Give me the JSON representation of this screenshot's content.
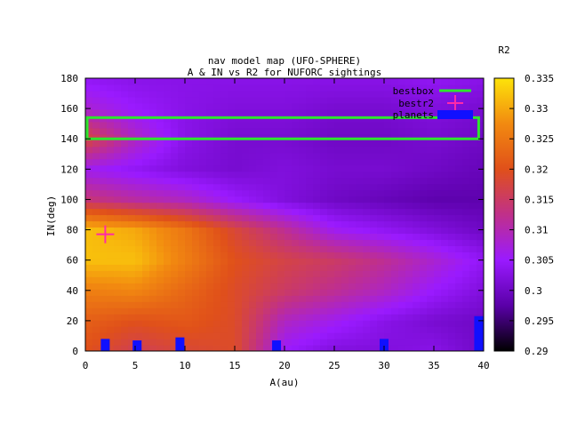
{
  "chart_data": {
    "type": "heatmap",
    "title_line1": "nav model map (UFO-SPHERE)",
    "title_line2": "A & IN vs R2 for NUFORC sightings",
    "xlabel": "A(au)",
    "ylabel": "IN(deg)",
    "colorbar_label": "R2",
    "xlim": [
      0,
      40
    ],
    "ylim": [
      0,
      180
    ],
    "x_ticks": [
      "0",
      "5",
      "10",
      "15",
      "20",
      "25",
      "30",
      "35",
      "40"
    ],
    "y_ticks": [
      "0",
      "20",
      "40",
      "60",
      "80",
      "100",
      "120",
      "140",
      "160",
      "180"
    ],
    "colorbar_range": [
      0.29,
      0.335
    ],
    "colorbar_ticks": [
      "0.29",
      "0.295",
      "0.3",
      "0.305",
      "0.31",
      "0.315",
      "0.32",
      "0.325",
      "0.33",
      "0.335"
    ],
    "colormap_stops": [
      "#000000",
      "#5a00a8",
      "#9a1aff",
      "#c0308a",
      "#e0501a",
      "#f28a10",
      "#fde30a"
    ],
    "legend": {
      "position": "top-right",
      "entries": [
        {
          "name": "bestbox",
          "color": "#2ee62e",
          "style": "line"
        },
        {
          "name": "bestr2",
          "color": "#ff2aa8",
          "style": "plus"
        },
        {
          "name": "planets",
          "color": "#1010ff",
          "style": "box"
        }
      ]
    },
    "bestbox": {
      "a_range": [
        0,
        39.5
      ],
      "in_range": [
        140,
        154
      ]
    },
    "bestr2": {
      "a": 2,
      "in": 77
    },
    "planets": [
      {
        "a": 2,
        "in_max": 8
      },
      {
        "a": 5.2,
        "in_max": 7
      },
      {
        "a": 9.5,
        "in_max": 9
      },
      {
        "a": 19.2,
        "in_max": 7
      },
      {
        "a": 30,
        "in_max": 8
      },
      {
        "a": 39.5,
        "in_max": 23
      }
    ],
    "grid_a": [
      0,
      5,
      10,
      15,
      20,
      25,
      30,
      35,
      40
    ],
    "grid_in": [
      0,
      20,
      40,
      60,
      80,
      100,
      120,
      140,
      160,
      180
    ],
    "r2_grid": [
      [
        0.32,
        0.316,
        0.318,
        0.319,
        0.305,
        0.302,
        0.302,
        0.303,
        0.3
      ],
      [
        0.322,
        0.32,
        0.321,
        0.319,
        0.309,
        0.306,
        0.303,
        0.301,
        0.3
      ],
      [
        0.326,
        0.327,
        0.323,
        0.319,
        0.315,
        0.312,
        0.309,
        0.305,
        0.302
      ],
      [
        0.332,
        0.332,
        0.326,
        0.32,
        0.317,
        0.315,
        0.312,
        0.308,
        0.304
      ],
      [
        0.332,
        0.33,
        0.325,
        0.318,
        0.312,
        0.306,
        0.304,
        0.302,
        0.3
      ],
      [
        0.314,
        0.311,
        0.309,
        0.305,
        0.302,
        0.3,
        0.299,
        0.298,
        0.298
      ],
      [
        0.306,
        0.304,
        0.302,
        0.301,
        0.302,
        0.301,
        0.301,
        0.3,
        0.299
      ],
      [
        0.318,
        0.309,
        0.303,
        0.301,
        0.301,
        0.3,
        0.3,
        0.301,
        0.3
      ],
      [
        0.308,
        0.305,
        0.303,
        0.302,
        0.302,
        0.301,
        0.301,
        0.302,
        0.301
      ],
      [
        0.304,
        0.303,
        0.303,
        0.303,
        0.303,
        0.303,
        0.303,
        0.304,
        0.303
      ]
    ]
  }
}
